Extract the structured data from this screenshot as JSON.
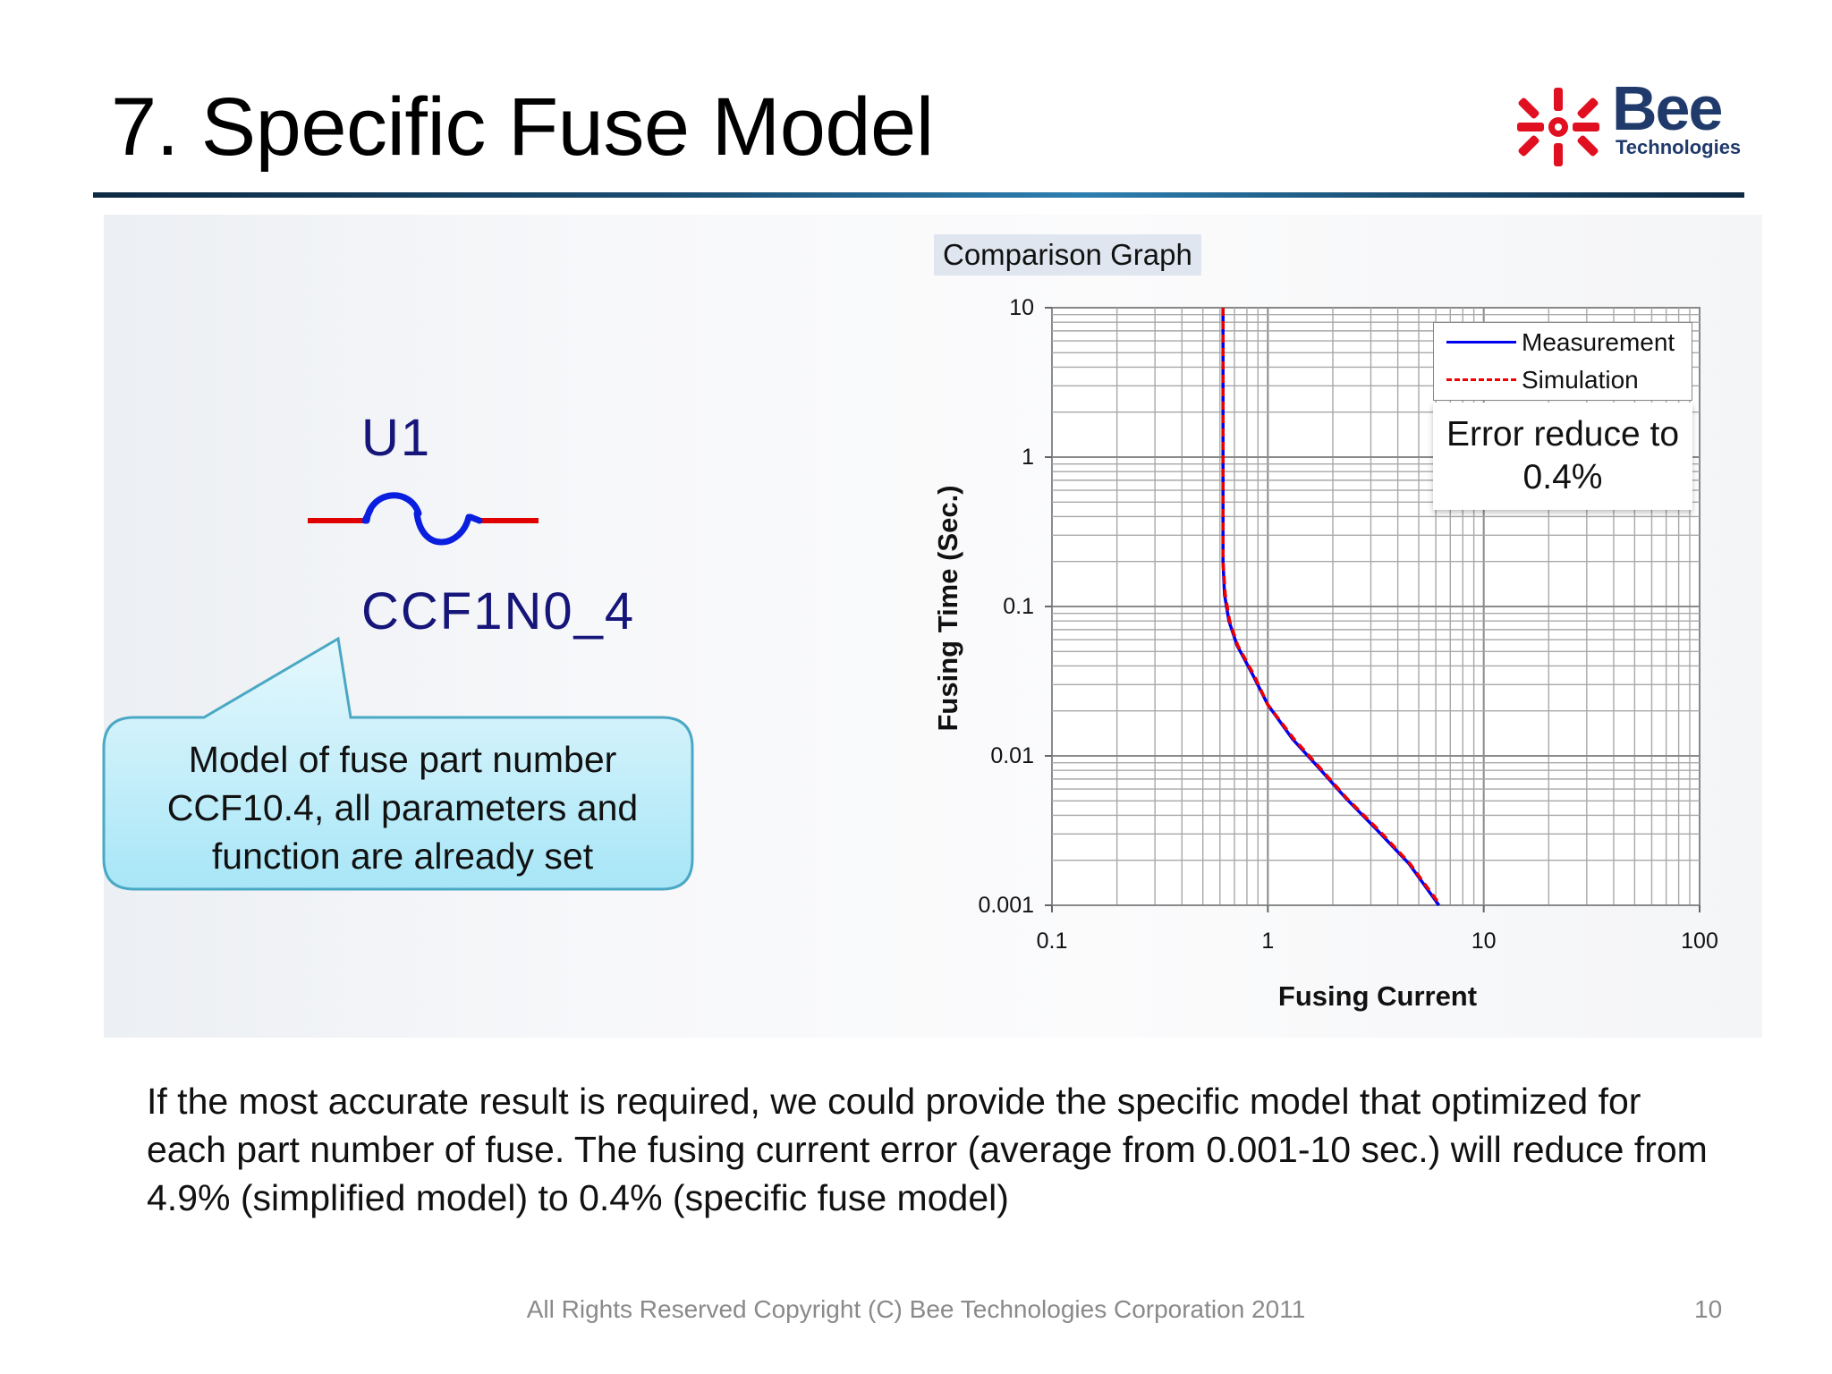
{
  "slide": {
    "title": "7. Specific Fuse Model",
    "logo_word": "Bee",
    "logo_sub": "Technologies",
    "footer": "All Rights Reserved Copyright (C) Bee Technologies Corporation 2011",
    "page_number": "10",
    "body": "If the most accurate result is required, we could provide the specific model that optimized for each part number of fuse. The fusing current error (average from 0.001-10 sec.) will reduce from 4.9% (simplified model) to 0.4% (specific fuse model)"
  },
  "schematic": {
    "reference": "U1",
    "value": "CCF1N0_4",
    "callout": "Model of fuse part number CCF10.4, all parameters and function are already set"
  },
  "chart_label": "Comparison Graph",
  "note": "Error reduce to 0.4%",
  "colors": {
    "measurement": "#0000ee",
    "simulation": "#ee0000",
    "wire": "#e00000",
    "symbol": "#0a1ee0",
    "text_navy": "#15157a",
    "logo_red": "#e01020",
    "logo_navy": "#1f3a6b"
  },
  "chart_data": {
    "type": "line",
    "xlabel": "Fusing Current",
    "ylabel": "Fusing Time (Sec.)",
    "x_scale": "log",
    "y_scale": "log",
    "xlim": [
      0.1,
      100
    ],
    "ylim": [
      0.001,
      10
    ],
    "x_ticks": [
      "0.1",
      "1",
      "10",
      "100"
    ],
    "y_ticks": [
      "10",
      "1",
      "0.1",
      "0.01",
      "0.001"
    ],
    "grid": true,
    "legend_position": "top-right",
    "series": [
      {
        "name": "Measurement",
        "line": "solid",
        "x": [
          0.62,
          0.62,
          0.62,
          0.63,
          0.66,
          0.72,
          0.85,
          1.0,
          1.3,
          1.7,
          2.3,
          3.2,
          4.5,
          6.2
        ],
        "y": [
          10,
          1,
          0.2,
          0.12,
          0.08,
          0.055,
          0.035,
          0.022,
          0.013,
          0.0085,
          0.0052,
          0.0032,
          0.0019,
          0.001
        ]
      },
      {
        "name": "Simulation",
        "line": "dashed",
        "x": [
          0.62,
          0.62,
          0.62,
          0.635,
          0.665,
          0.725,
          0.86,
          1.0,
          1.32,
          1.72,
          2.32,
          3.25,
          4.55,
          6.3
        ],
        "y": [
          10,
          1,
          0.2,
          0.12,
          0.08,
          0.055,
          0.035,
          0.022,
          0.013,
          0.0085,
          0.0052,
          0.0032,
          0.0019,
          0.001
        ]
      }
    ]
  }
}
